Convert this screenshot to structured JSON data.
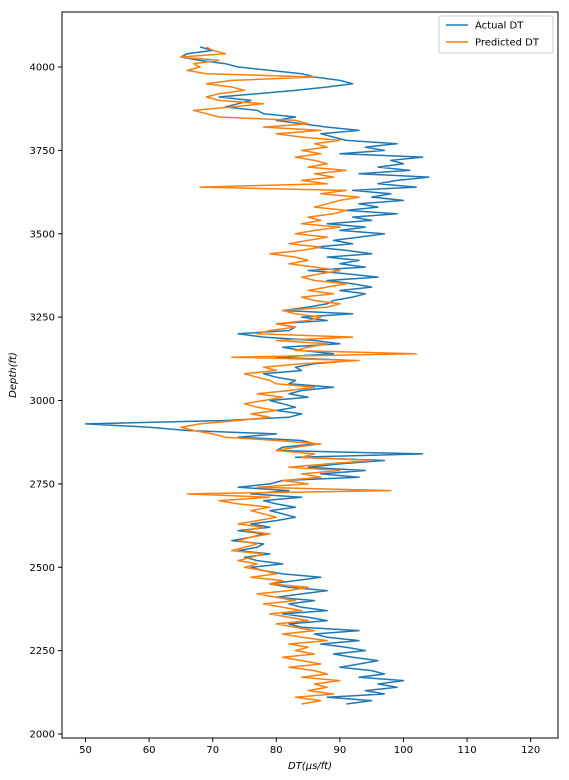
{
  "chart_data": {
    "type": "line",
    "xlabel": "DT(μs/ft)",
    "ylabel": "Depth(ft)",
    "xlim": [
      46.3,
      124.3
    ],
    "ylim": [
      1988,
      4165
    ],
    "x_ticks": [
      50,
      60,
      70,
      80,
      90,
      100,
      110,
      120
    ],
    "y_ticks": [
      2000,
      2250,
      2500,
      2750,
      3000,
      3250,
      3500,
      3750,
      4000
    ],
    "grid": false,
    "legend_position": "top-right",
    "series": [
      {
        "name": "Actual DT",
        "color": "#1f77b4",
        "depth": [
          2090,
          2100,
          2110,
          2120,
          2130,
          2140,
          2150,
          2160,
          2170,
          2180,
          2190,
          2200,
          2210,
          2220,
          2230,
          2240,
          2250,
          2260,
          2270,
          2280,
          2290,
          2300,
          2310,
          2320,
          2330,
          2340,
          2350,
          2360,
          2370,
          2380,
          2390,
          2400,
          2410,
          2420,
          2430,
          2440,
          2450,
          2460,
          2470,
          2480,
          2490,
          2500,
          2510,
          2520,
          2530,
          2540,
          2550,
          2560,
          2570,
          2580,
          2590,
          2600,
          2610,
          2620,
          2630,
          2640,
          2650,
          2660,
          2670,
          2680,
          2690,
          2700,
          2710,
          2720,
          2730,
          2740,
          2750,
          2760,
          2770,
          2780,
          2790,
          2800,
          2810,
          2820,
          2830,
          2840,
          2850,
          2860,
          2870,
          2880,
          2890,
          2900,
          2910,
          2920,
          2930,
          2940,
          2950,
          2960,
          2970,
          2980,
          2990,
          3000,
          3010,
          3020,
          3030,
          3040,
          3050,
          3060,
          3070,
          3080,
          3090,
          3100,
          3110,
          3120,
          3130,
          3140,
          3150,
          3160,
          3170,
          3180,
          3190,
          3200,
          3210,
          3220,
          3230,
          3240,
          3250,
          3260,
          3270,
          3280,
          3290,
          3300,
          3310,
          3320,
          3330,
          3340,
          3350,
          3360,
          3370,
          3380,
          3390,
          3400,
          3410,
          3420,
          3430,
          3440,
          3450,
          3460,
          3470,
          3480,
          3490,
          3500,
          3510,
          3520,
          3530,
          3540,
          3550,
          3560,
          3570,
          3580,
          3590,
          3600,
          3610,
          3620,
          3630,
          3640,
          3650,
          3660,
          3670,
          3680,
          3690,
          3700,
          3710,
          3720,
          3730,
          3740,
          3750,
          3760,
          3770,
          3780,
          3790,
          3800,
          3810,
          3820,
          3830,
          3840,
          3850,
          3860,
          3870,
          3880,
          3890,
          3900,
          3910,
          3920,
          3930,
          3940,
          3950,
          3960,
          3970,
          3980,
          3990,
          4000,
          4010,
          4020,
          4030,
          4040,
          4050,
          4060
        ],
        "dt": [
          91,
          95,
          88,
          97,
          94,
          99,
          96,
          100,
          93,
          97,
          95,
          90,
          93,
          96,
          92,
          89,
          94,
          91,
          87,
          93,
          88,
          86,
          93,
          84,
          82,
          88,
          85,
          81,
          88,
          84,
          82,
          86,
          80,
          84,
          88,
          82,
          79,
          83,
          87,
          81,
          78,
          76,
          81,
          77,
          75,
          79,
          74,
          77,
          78,
          73,
          76,
          78,
          74,
          79,
          76,
          80,
          83,
          81,
          79,
          83,
          80,
          78,
          84,
          76,
          82,
          74,
          79,
          81,
          93,
          87,
          94,
          85,
          90,
          97,
          83,
          103,
          80,
          81,
          86,
          84,
          74,
          80,
          66,
          60,
          50,
          72,
          82,
          84,
          80,
          83,
          81,
          79,
          85,
          82,
          84,
          89,
          82,
          83,
          80,
          78,
          84,
          83,
          86,
          92,
          80,
          89,
          84,
          81,
          90,
          86,
          78,
          74,
          82,
          83,
          80,
          88,
          84,
          92,
          81,
          85,
          88,
          89,
          92,
          94,
          90,
          95,
          92,
          88,
          96,
          91,
          85,
          94,
          90,
          93,
          88,
          95,
          91,
          86,
          92,
          89,
          93,
          97,
          90,
          94,
          88,
          95,
          92,
          99,
          91,
          96,
          93,
          100,
          95,
          98,
          92,
          102,
          96,
          99,
          104,
          93,
          101,
          96,
          100,
          98,
          103,
          90,
          97,
          94,
          99,
          91,
          89,
          87,
          93,
          88,
          84,
          80,
          83,
          78,
          77,
          72,
          74,
          76,
          71,
          77,
          83,
          88,
          92,
          90,
          86,
          84,
          79,
          74,
          72,
          68,
          65,
          66,
          70,
          68,
          71,
          70
        ]
      },
      {
        "name": "Predicted DT",
        "color": "#ff7f0e",
        "depth": [
          2090,
          2100,
          2110,
          2120,
          2130,
          2140,
          2150,
          2160,
          2170,
          2180,
          2190,
          2200,
          2210,
          2220,
          2230,
          2240,
          2250,
          2260,
          2270,
          2280,
          2290,
          2300,
          2310,
          2320,
          2330,
          2340,
          2350,
          2360,
          2370,
          2380,
          2390,
          2400,
          2410,
          2420,
          2430,
          2440,
          2450,
          2460,
          2470,
          2480,
          2490,
          2500,
          2510,
          2520,
          2530,
          2540,
          2550,
          2560,
          2570,
          2580,
          2590,
          2600,
          2610,
          2620,
          2630,
          2640,
          2650,
          2660,
          2670,
          2680,
          2690,
          2700,
          2710,
          2720,
          2730,
          2740,
          2750,
          2760,
          2770,
          2780,
          2790,
          2800,
          2810,
          2820,
          2830,
          2840,
          2850,
          2860,
          2870,
          2880,
          2890,
          2900,
          2910,
          2920,
          2930,
          2940,
          2950,
          2960,
          2970,
          2980,
          2990,
          3000,
          3010,
          3020,
          3030,
          3040,
          3050,
          3060,
          3070,
          3080,
          3090,
          3100,
          3110,
          3120,
          3130,
          3140,
          3150,
          3160,
          3170,
          3180,
          3190,
          3200,
          3210,
          3220,
          3230,
          3240,
          3250,
          3260,
          3270,
          3280,
          3290,
          3300,
          3310,
          3320,
          3330,
          3340,
          3350,
          3360,
          3370,
          3380,
          3390,
          3400,
          3410,
          3420,
          3430,
          3440,
          3450,
          3460,
          3470,
          3480,
          3490,
          3500,
          3510,
          3520,
          3530,
          3540,
          3550,
          3560,
          3570,
          3580,
          3590,
          3600,
          3610,
          3620,
          3630,
          3640,
          3650,
          3660,
          3670,
          3680,
          3690,
          3700,
          3710,
          3720,
          3730,
          3740,
          3750,
          3760,
          3770,
          3780,
          3790,
          3800,
          3810,
          3820,
          3830,
          3840,
          3850,
          3860,
          3870,
          3880,
          3890,
          3900,
          3910,
          3920,
          3930,
          3940,
          3950,
          3960,
          3970,
          3980,
          3990,
          4000,
          4010,
          4020,
          4030,
          4040,
          4050,
          4060
        ],
        "dt": [
          84,
          87,
          83,
          89,
          85,
          88,
          86,
          90,
          84,
          88,
          86,
          82,
          87,
          84,
          81,
          86,
          83,
          85,
          82,
          88,
          84,
          81,
          86,
          83,
          80,
          85,
          82,
          79,
          84,
          81,
          78,
          83,
          80,
          77,
          82,
          85,
          79,
          81,
          76,
          80,
          78,
          75,
          77,
          74,
          76,
          78,
          73,
          75,
          77,
          74,
          76,
          79,
          75,
          78,
          74,
          77,
          80,
          78,
          76,
          79,
          74,
          71,
          79,
          66,
          98,
          77,
          85,
          81,
          87,
          84,
          90,
          82,
          88,
          95,
          84,
          86,
          80,
          83,
          87,
          80,
          72,
          70,
          67,
          65,
          68,
          74,
          79,
          76,
          80,
          77,
          75,
          78,
          81,
          77,
          82,
          86,
          80,
          79,
          77,
          75,
          80,
          78,
          84,
          93,
          73,
          102,
          83,
          85,
          88,
          80,
          92,
          77,
          79,
          83,
          80,
          85,
          87,
          83,
          81,
          88,
          90,
          86,
          84,
          89,
          85,
          88,
          91,
          86,
          84,
          87,
          90,
          86,
          82,
          85,
          83,
          79,
          84,
          87,
          82,
          85,
          88,
          83,
          86,
          90,
          84,
          87,
          85,
          89,
          91,
          86,
          88,
          90,
          93,
          87,
          91,
          68,
          88,
          84,
          89,
          86,
          91,
          85,
          88,
          86,
          83,
          87,
          84,
          88,
          86,
          90,
          84,
          80,
          87,
          78,
          85,
          83,
          71,
          69,
          67,
          73,
          78,
          71,
          69,
          71,
          75,
          73,
          69,
          73,
          86,
          69,
          66,
          68,
          67,
          71,
          65,
          72,
          70,
          69,
          73,
          71
        ]
      }
    ]
  }
}
